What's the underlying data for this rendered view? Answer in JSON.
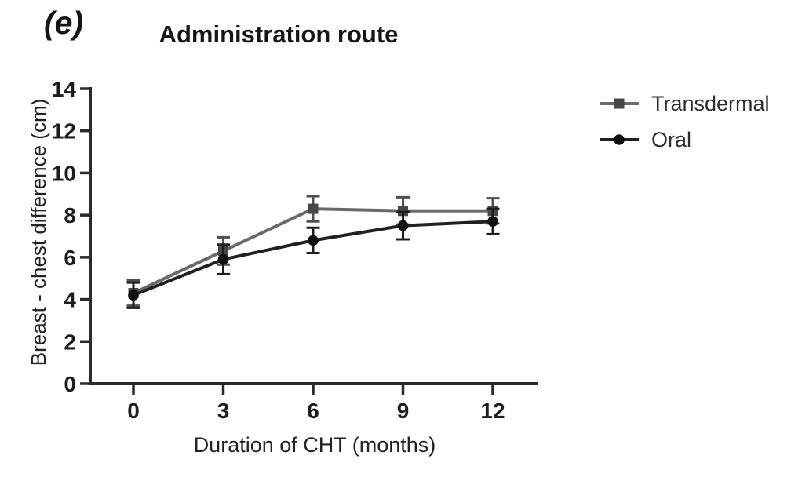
{
  "figure_label": "(e)",
  "title": "Administration route",
  "colors": {
    "axis": "#2a2a2a",
    "tick_text": "#1d1d1d",
    "title_text": "#161616",
    "legend_text": "#2e2e2e",
    "background": "#ffffff"
  },
  "legend": {
    "position": "right",
    "items": [
      {
        "label": "Transdermal",
        "marker": "square-icon"
      },
      {
        "label": "Oral",
        "marker": "circle-icon"
      }
    ]
  },
  "chart_data": {
    "type": "line",
    "title": "Administration route",
    "xlabel": "Duration of CHT (months)",
    "ylabel": "Breast - chest difference (cm)",
    "x": [
      0,
      3,
      6,
      9,
      12
    ],
    "xticks": [
      0,
      3,
      6,
      9,
      12
    ],
    "yticks": [
      0,
      2,
      4,
      6,
      8,
      10,
      12,
      14
    ],
    "xlim": [
      -1.45,
      13.5
    ],
    "ylim": [
      0,
      14
    ],
    "grid": false,
    "error_bars": true,
    "legend_position": "right",
    "series": [
      {
        "name": "Transdermal",
        "marker": "square",
        "color": "#6a6a6a",
        "marker_color": "#474747",
        "error_color": "#4f4f4f",
        "values": [
          4.3,
          6.3,
          8.3,
          8.2,
          8.2
        ],
        "error": [
          0.6,
          0.65,
          0.6,
          0.65,
          0.6
        ]
      },
      {
        "name": "Oral",
        "marker": "circle",
        "color": "#212121",
        "marker_color": "#0f0f0f",
        "error_color": "#1f1f1f",
        "values": [
          4.2,
          5.9,
          6.8,
          7.5,
          7.7
        ],
        "error": [
          0.6,
          0.7,
          0.6,
          0.65,
          0.6
        ]
      }
    ]
  }
}
